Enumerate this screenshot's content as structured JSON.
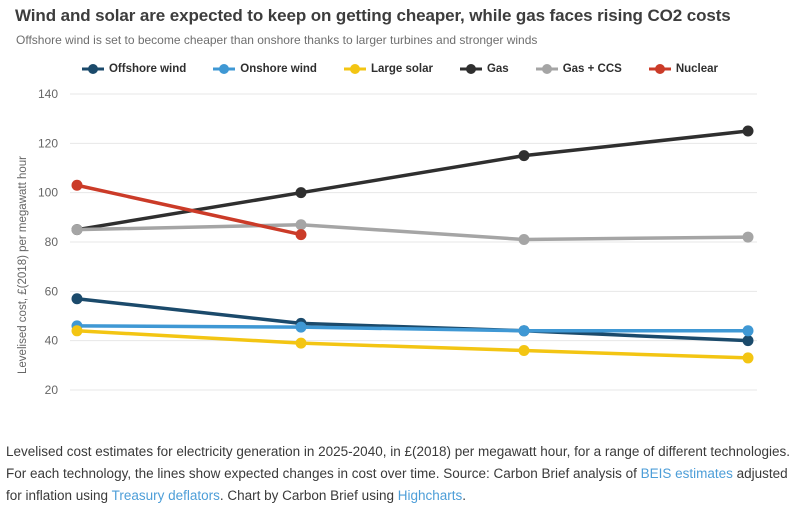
{
  "header": {
    "title": "Wind and solar are expected to keep on getting cheaper, while gas faces rising CO2 costs",
    "subtitle": "Offshore wind is set to become cheaper than onshore thanks to larger turbines and stronger winds"
  },
  "chart_data": {
    "type": "line",
    "x": [
      2025,
      2030,
      2035,
      2040
    ],
    "x_axis_labels_visible": false,
    "series": [
      {
        "name": "Offshore wind",
        "color": "#1b4a6b",
        "values": [
          57,
          47,
          44,
          40
        ]
      },
      {
        "name": "Onshore wind",
        "color": "#3f98d4",
        "values": [
          46,
          45.5,
          44,
          44
        ]
      },
      {
        "name": "Large solar",
        "color": "#f3c513",
        "values": [
          44,
          39,
          36,
          33
        ]
      },
      {
        "name": "Gas",
        "color": "#2f2f2f",
        "values": [
          85,
          100,
          115,
          125
        ]
      },
      {
        "name": "Gas + CCS",
        "color": "#a5a5a5",
        "values": [
          85,
          87,
          81,
          82
        ]
      },
      {
        "name": "Nuclear",
        "color": "#cb3b28",
        "values": [
          103,
          83,
          null,
          null
        ]
      }
    ],
    "ylabel": "Levelised cost, £(2018) per megawatt hour",
    "yticks": [
      140,
      120,
      100,
      80,
      60,
      40,
      20
    ],
    "ylim": [
      20,
      140
    ],
    "grid": "horizontal",
    "legend_position": "top"
  },
  "footer": {
    "segments": [
      {
        "text": "Levelised cost estimates for electricity generation in 2025-2040, in £(2018) per megawatt hour, for a range of different technologies. For each technology, the lines show expected changes in cost over time. Source: Carbon Brief analysis of ",
        "link": false
      },
      {
        "text": "BEIS estimates",
        "link": true
      },
      {
        "text": " adjusted for inflation using ",
        "link": false
      },
      {
        "text": "Treasury deflators",
        "link": true
      },
      {
        "text": ". Chart by Carbon Brief using ",
        "link": false
      },
      {
        "text": "Highcharts",
        "link": true
      },
      {
        "text": ".",
        "link": false
      }
    ]
  },
  "colors": {
    "link": "#4d9ed8",
    "gridline": "#e7e7e7",
    "axis_text": "#666666",
    "title_text": "#3d3d3d",
    "footer_text": "#3a3a3a"
  }
}
